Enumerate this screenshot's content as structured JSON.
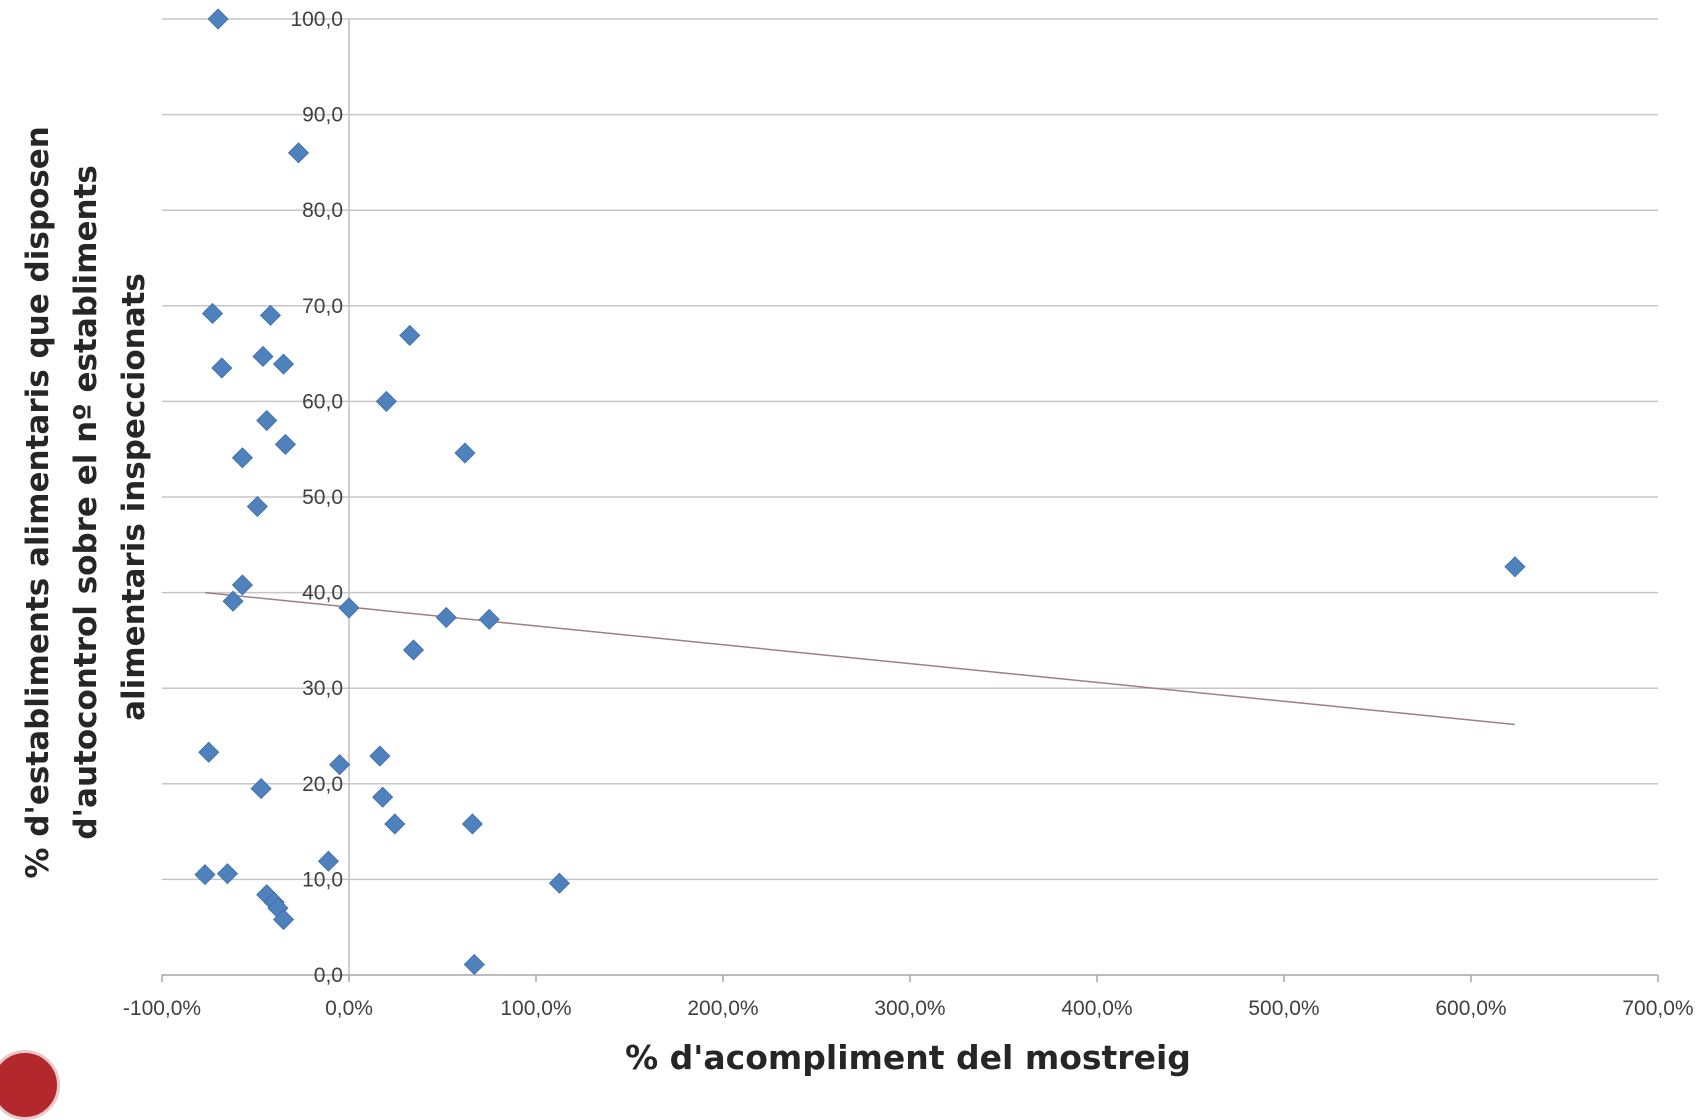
{
  "chart_data": {
    "type": "scatter",
    "xlabel": "% d'acompliment del mostreig",
    "ylabel_lines": [
      "% d'establiments alimentaris que disposen",
      "d'autocontrol sobre el nº establiments",
      "alimentaris inspeccionats"
    ],
    "xlim": [
      -100,
      700
    ],
    "ylim": [
      0,
      100
    ],
    "x_ticks": [
      -100,
      0,
      100,
      200,
      300,
      400,
      500,
      600,
      700
    ],
    "x_tick_labels": [
      "-100,0%",
      "0,0%",
      "100,0%",
      "200,0%",
      "300,0%",
      "400,0%",
      "500,0%",
      "600,0%",
      "700,0%"
    ],
    "y_ticks": [
      0,
      10,
      20,
      30,
      40,
      50,
      60,
      70,
      80,
      90,
      100
    ],
    "y_tick_labels": [
      "0,0",
      "10,0",
      "20,0",
      "30,0",
      "40,0",
      "50,0",
      "60,0",
      "70,0",
      "80,0",
      "90,0",
      "100,0"
    ],
    "grid": "horizontal",
    "points": [
      {
        "x": -70.0,
        "y": 100.0
      },
      {
        "x": -27.0,
        "y": 86.0
      },
      {
        "x": -73.0,
        "y": 69.2
      },
      {
        "x": -42.0,
        "y": 69.0
      },
      {
        "x": 32.5,
        "y": 66.9
      },
      {
        "x": -46.0,
        "y": 64.7
      },
      {
        "x": -68.0,
        "y": 63.5
      },
      {
        "x": -35.0,
        "y": 63.9
      },
      {
        "x": 20.0,
        "y": 60.0
      },
      {
        "x": -44.0,
        "y": 58.0
      },
      {
        "x": -34.0,
        "y": 55.5
      },
      {
        "x": -57.0,
        "y": 54.1
      },
      {
        "x": 62.0,
        "y": 54.6
      },
      {
        "x": -49.0,
        "y": 49.0
      },
      {
        "x": 623.5,
        "y": 42.7
      },
      {
        "x": -57.0,
        "y": 40.8
      },
      {
        "x": -62.0,
        "y": 39.1
      },
      {
        "x": 0.0,
        "y": 38.4
      },
      {
        "x": 52.0,
        "y": 37.4
      },
      {
        "x": 75.0,
        "y": 37.2
      },
      {
        "x": 34.5,
        "y": 34.0
      },
      {
        "x": -75.0,
        "y": 23.3
      },
      {
        "x": 16.5,
        "y": 22.9
      },
      {
        "x": -5.0,
        "y": 22.0
      },
      {
        "x": -47.0,
        "y": 19.5
      },
      {
        "x": 18.0,
        "y": 18.6
      },
      {
        "x": 66.0,
        "y": 15.8
      },
      {
        "x": 24.5,
        "y": 15.8
      },
      {
        "x": -11.0,
        "y": 11.9
      },
      {
        "x": -77.0,
        "y": 10.5
      },
      {
        "x": -65.0,
        "y": 10.6
      },
      {
        "x": 112.5,
        "y": 9.6
      },
      {
        "x": -44.0,
        "y": 8.4
      },
      {
        "x": -40.0,
        "y": 7.6
      },
      {
        "x": -38.0,
        "y": 7.0
      },
      {
        "x": -35.0,
        "y": 5.8
      },
      {
        "x": 67.0,
        "y": 1.1
      }
    ],
    "trendline": {
      "x": [
        -77,
        623.5
      ],
      "y": [
        40.0,
        26.2
      ]
    },
    "colors": {
      "marker": "#4f81bd",
      "trendline": "#9e7f86",
      "grid": "#c6c6c6",
      "axis": "#a6a6a6",
      "zero_line": "#bfbfbf"
    }
  }
}
